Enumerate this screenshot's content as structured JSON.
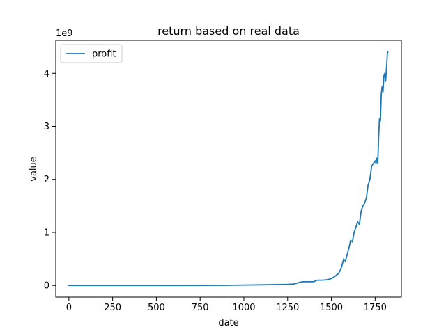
{
  "chart_data": {
    "type": "line",
    "title": "return based on real data",
    "xlabel": "date",
    "ylabel": "value",
    "y_offset_label": "1e9",
    "xlim": [
      -75,
      1900
    ],
    "ylim": [
      -0.22,
      4.62
    ],
    "y_units_multiplier": 1000000000,
    "x_ticks": [
      0,
      250,
      500,
      750,
      1000,
      1250,
      1500,
      1750
    ],
    "x_tick_labels": [
      "0",
      "250",
      "500",
      "750",
      "1000",
      "1250",
      "1500",
      "1750"
    ],
    "y_ticks": [
      0,
      1,
      2,
      3,
      4
    ],
    "y_tick_labels": [
      "0",
      "1",
      "2",
      "3",
      "4"
    ],
    "grid": false,
    "legend_position": "top-left",
    "colors": {
      "profit": "#1f77b4"
    },
    "series": [
      {
        "name": "profit",
        "x": [
          0,
          250,
          500,
          750,
          900,
          1000,
          1100,
          1200,
          1250,
          1280,
          1300,
          1320,
          1340,
          1350,
          1380,
          1400,
          1410,
          1420,
          1450,
          1480,
          1500,
          1510,
          1520,
          1530,
          1540,
          1550,
          1560,
          1570,
          1580,
          1590,
          1600,
          1610,
          1620,
          1630,
          1640,
          1650,
          1660,
          1670,
          1680,
          1690,
          1700,
          1710,
          1720,
          1730,
          1740,
          1750,
          1755,
          1760,
          1765,
          1770,
          1775,
          1780,
          1785,
          1790,
          1795,
          1800,
          1805,
          1810,
          1815,
          1820,
          1823
        ],
        "y": [
          0,
          0,
          0,
          0.001,
          0.003,
          0.008,
          0.012,
          0.018,
          0.02,
          0.025,
          0.04,
          0.06,
          0.07,
          0.07,
          0.07,
          0.07,
          0.09,
          0.1,
          0.1,
          0.11,
          0.13,
          0.15,
          0.17,
          0.2,
          0.22,
          0.28,
          0.37,
          0.5,
          0.46,
          0.58,
          0.7,
          0.85,
          0.82,
          1.0,
          1.1,
          1.2,
          1.15,
          1.4,
          1.5,
          1.55,
          1.65,
          1.9,
          2.0,
          2.25,
          2.3,
          2.35,
          2.3,
          2.4,
          2.3,
          2.8,
          3.15,
          3.1,
          3.6,
          3.75,
          3.65,
          3.95,
          4.0,
          3.85,
          4.1,
          4.38,
          4.4
        ]
      }
    ]
  }
}
